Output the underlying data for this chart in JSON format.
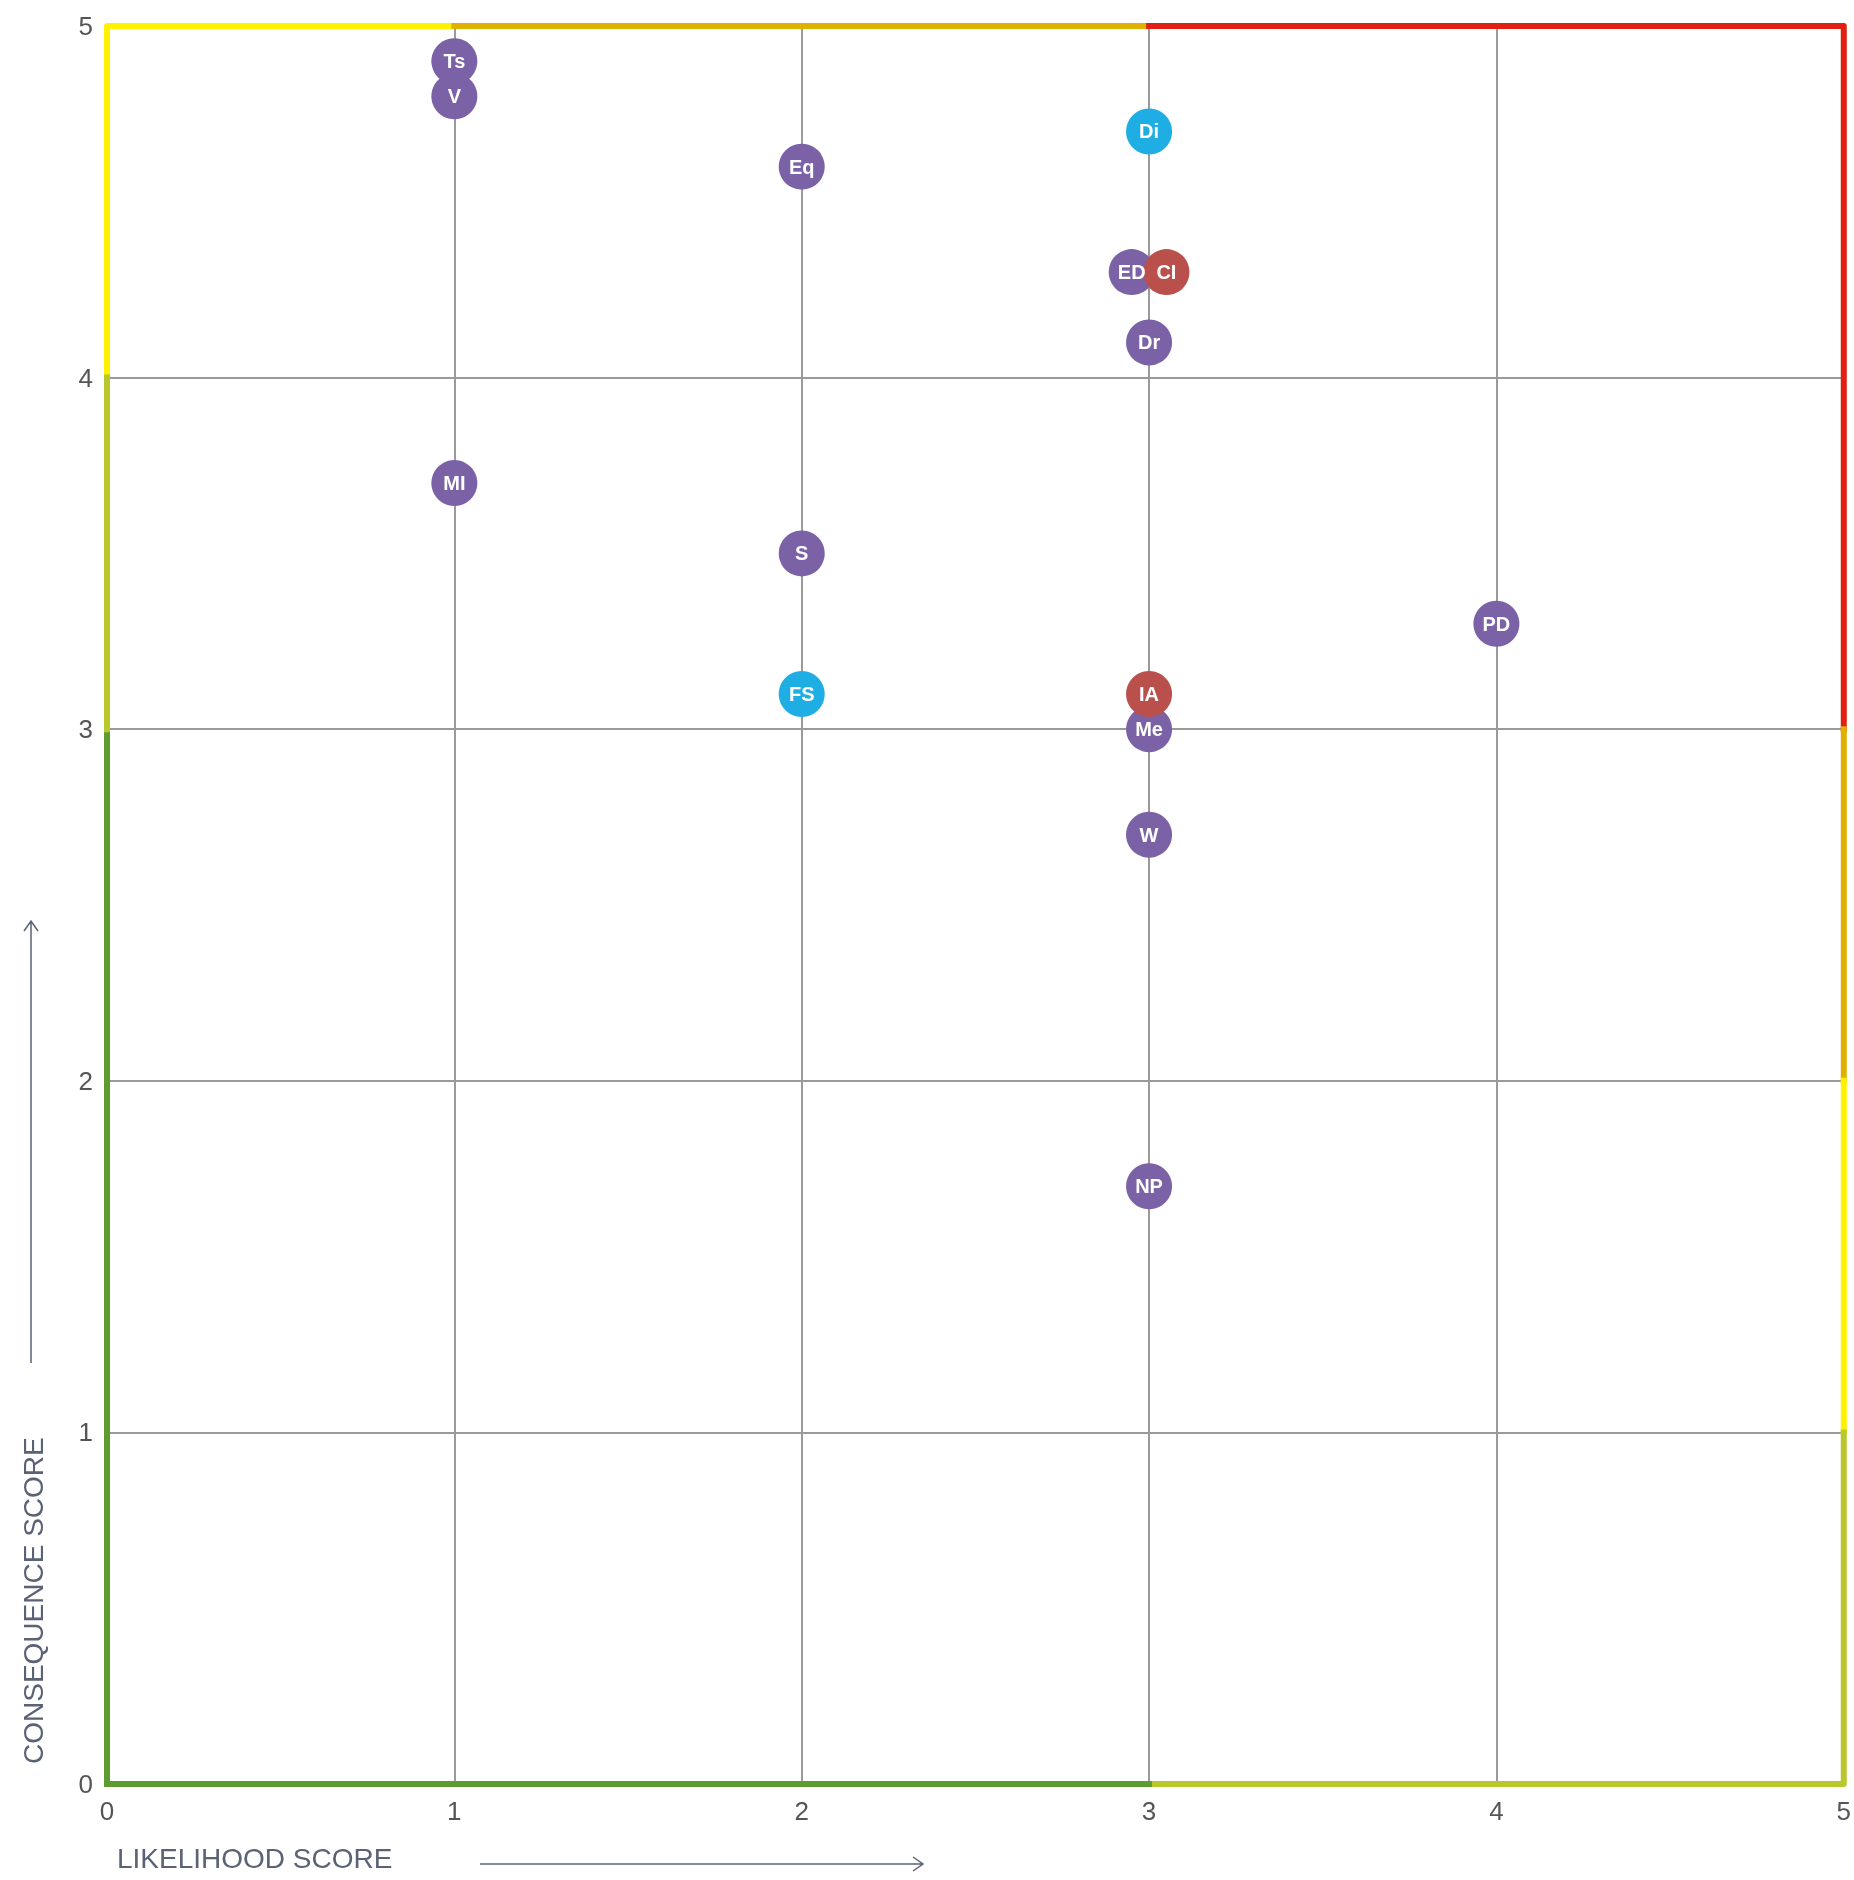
{
  "chart_data": {
    "type": "scatter",
    "xlabel": "LIKELIHOOD SCORE",
    "ylabel": "CONSEQUENCE SCORE",
    "xlim": [
      0,
      5
    ],
    "ylim": [
      0,
      5
    ],
    "xticks": [
      0,
      1,
      2,
      3,
      4,
      5
    ],
    "yticks": [
      0,
      1,
      2,
      3,
      4,
      5
    ],
    "grid": true,
    "marker": "circle",
    "series": [
      {
        "type": "line",
        "marker": "none",
        "color": "#fff200",
        "x": [
          0,
          0,
          1
        ],
        "values": [
          4,
          5,
          5
        ]
      },
      {
        "type": "line",
        "marker": "none",
        "color": "#e0b000",
        "x": [
          1,
          3
        ],
        "values": [
          5,
          5
        ]
      },
      {
        "type": "line",
        "marker": "none",
        "color": "#e02010",
        "x": [
          3,
          5,
          5
        ],
        "values": [
          5,
          5,
          3
        ]
      },
      {
        "type": "line",
        "marker": "none",
        "color": "#e0b000",
        "x": [
          5,
          5
        ],
        "values": [
          3,
          2
        ]
      },
      {
        "type": "line",
        "marker": "none",
        "color": "#fff200",
        "x": [
          5,
          5
        ],
        "values": [
          2,
          1
        ]
      },
      {
        "type": "line",
        "marker": "none",
        "color": "#b8c82a",
        "x": [
          5,
          5,
          3
        ],
        "values": [
          1,
          0,
          0
        ]
      },
      {
        "type": "line",
        "marker": "none",
        "color": "#5e9c30",
        "x": [
          0,
          3
        ],
        "values": [
          0,
          0
        ]
      },
      {
        "type": "line",
        "marker": "none",
        "color": "#5e9c30",
        "x": [
          0,
          0
        ],
        "values": [
          0,
          3
        ]
      },
      {
        "type": "line",
        "marker": "none",
        "color": "#b8c82a",
        "x": [
          0,
          0
        ],
        "values": [
          3,
          4
        ]
      },
      {
        "color": "#7b62a6",
        "x": [
          1,
          1,
          2,
          2.95,
          3,
          1,
          2,
          4,
          3,
          3,
          3
        ],
        "values": [
          4.9,
          4.8,
          4.6,
          4.3,
          4.1,
          3.7,
          3.5,
          3.3,
          3.0,
          2.7,
          1.7
        ],
        "value_labels": [
          "Ts",
          "V",
          "Eq",
          "ED",
          "Dr",
          "MI",
          "S",
          "PD",
          "Me",
          "W",
          "NP"
        ]
      },
      {
        "color": "#1eaee3",
        "x": [
          3,
          2
        ],
        "values": [
          4.7,
          3.1
        ],
        "value_labels": [
          "Di",
          "FS"
        ]
      },
      {
        "color": "#b9504c",
        "x": [
          3.05,
          3
        ],
        "values": [
          4.3,
          3.1
        ],
        "value_labels": [
          "CI",
          "IA"
        ]
      }
    ]
  }
}
